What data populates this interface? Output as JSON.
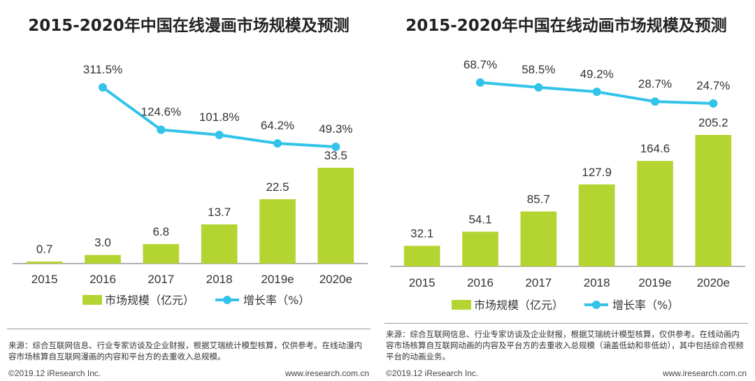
{
  "colors": {
    "bar": "#b4d432",
    "line": "#33c3e9",
    "axis": "#888888"
  },
  "chart_data": [
    {
      "type": "bar",
      "title": "2015-2020年中国在线漫画市场规模及预测",
      "categories": [
        "2015",
        "2016",
        "2017",
        "2018",
        "2019e",
        "2020e"
      ],
      "series": [
        {
          "name": "市场规模（亿元）",
          "type": "bar",
          "values": [
            0.7,
            3.0,
            6.8,
            13.7,
            22.5,
            33.5
          ],
          "labels": [
            "0.7",
            "3.0",
            "6.8",
            "13.7",
            "22.5",
            "33.5"
          ]
        },
        {
          "name": "增长率（%）",
          "type": "line",
          "values": [
            null,
            311.5,
            124.6,
            101.8,
            64.2,
            49.3
          ],
          "labels": [
            "",
            "311.5%",
            "124.6%",
            "101.8%",
            "64.2%",
            "49.3%"
          ]
        }
      ],
      "bar_ylim": [
        0,
        36
      ],
      "line_ylim": [
        0,
        430
      ],
      "source": "来源：综合互联网信息、行业专家访谈及企业财报，根据艾瑞统计模型核算，仅供参考。在线动漫内容市场核算自互联网漫画的内容和平台方的去重收入总规模。",
      "copyright": "©2019.12 iResearch Inc.",
      "url": "www.iresearch.com.cn"
    },
    {
      "type": "bar",
      "title": "2015-2020年中国在线动画市场规模及预测",
      "categories": [
        "2015",
        "2016",
        "2017",
        "2018",
        "2019e",
        "2020e"
      ],
      "series": [
        {
          "name": "市场规模（亿元）",
          "type": "bar",
          "values": [
            32.1,
            54.1,
            85.7,
            127.9,
            164.6,
            205.2
          ],
          "labels": [
            "32.1",
            "54.1",
            "85.7",
            "127.9",
            "164.6",
            "205.2"
          ]
        },
        {
          "name": "增长率（%）",
          "type": "line",
          "values": [
            null,
            68.7,
            58.5,
            49.2,
            28.7,
            24.7
          ],
          "labels": [
            "",
            "68.7%",
            "58.5%",
            "49.2%",
            "28.7%",
            "24.7%"
          ]
        }
      ],
      "bar_ylim": [
        0,
        225
      ],
      "line_ylim": [
        -650,
        125
      ],
      "source": "来源：综合互联网信息、行业专家访谈及企业财报，根据艾瑞统计模型核算，仅供参考。在线动画内容市场核算自互联网动画的内容及平台方的去重收入总规模（涵盖低幼和非低幼），其中包括综合视频平台的动画业务。",
      "copyright": "©2019.12 iResearch Inc.",
      "url": "www.iresearch.com.cn"
    }
  ]
}
